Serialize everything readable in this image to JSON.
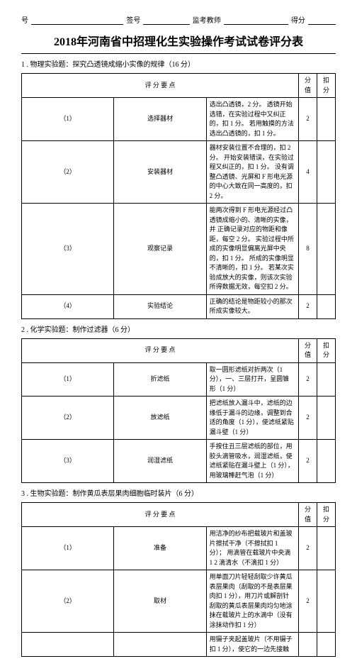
{
  "header_labels": {
    "hao": "号",
    "qianhao": "签号",
    "jiankao": "监考教师",
    "defen": "得分"
  },
  "title": "2018年河南省中招理化生实验操作考试试卷评分表",
  "sections": [
    {
      "heading": "1 . 物理实验题：探究凸透镜成缩小实像的规律（16 分）"
    },
    {
      "heading": "2 . 化学实验题：制作过滤器（6 分）"
    },
    {
      "heading": "3 . 生物实验题：制作黄瓜表层果肉细胞临时装片（6 分）"
    }
  ],
  "cols": {
    "points": "评 分 要 点",
    "score": "分值",
    "deduct": "扣分"
  },
  "t1": [
    {
      "idx": "（1）",
      "name": "选择器材",
      "pts": "选出凸透镜，2 分。\n透镜开始选错，在实验过程中又纠正的，扣 1 分。\n若用触摸的方法选出凸透镜的，扣 1 分。",
      "score": "2"
    },
    {
      "idx": "（2）",
      "name": "安装器材",
      "pts": "器材安装位置不合理的，扣 2 分。\n开始安装错误，在实验过程又纠正的，扣 1 分。\n没有调整凸透镜、光屏和 F 形电光源的中心大致在同一高度的，扣 2 分。",
      "score": "4"
    },
    {
      "idx": "（3）",
      "name": "观察记录",
      "pts": "能两次得到 F 形电光源经过凸透镜成缩小的、清晰的实像，并\n正确记录对应的物距和像距，每空 2 分。\n实验过程中所成的实像明显偏离光屏中央的，扣 1 分。\n所成的实像明显不清晰的，扣 1 分。\n若某次实验成放大的实像，则该次实验所得数据无效，每空扣 2 分。",
      "score": "8"
    },
    {
      "idx": "（4）",
      "name": "实验结论",
      "pts": "正确的结论是物距较小的那次所成实像较大。",
      "score": "2"
    }
  ],
  "t2": [
    {
      "idx": "（1）",
      "name": "折滤纸",
      "pts": "取一圆形滤纸对折两次（1 分），一、三层打开，呈圆锥形（1 分）",
      "score": "2"
    },
    {
      "idx": "（2）",
      "name": "放滤纸",
      "pts": "把滤纸放入漏斗中，滤纸的边缘低于漏斗的边缘，调整到合适的角度（1 分），使滤纸紧贴漏斗壁（1 分）",
      "score": "2"
    },
    {
      "idx": "（3）",
      "name": "润湿滤纸",
      "pts": "手按住丑三层滤纸的部位，用胶头滴管吸水，润湿滤纸，使滤纸紧贴在漏斗壁上（1 分），用玻璃棒赶气泡（1 分）",
      "score": "2"
    }
  ],
  "t3": [
    {
      "idx": "（1）",
      "name": "准备",
      "pts": "用洁净的纱布把载玻片和盖玻片擦拭干净（不擦拭扣 1 分）；\n用滴管在载玻片中央滴 1 2 滴清水（不滴扣 1 分）",
      "score": "2"
    },
    {
      "idx": "（2）",
      "name": "取材",
      "pts": "用单面刀片轻轻刮取少许黄瓜表层果肉（刮取的不是表层果肉扣 1 分），用刀片或解剖针刮取的黄瓜表层果肉均匀地涂抹在载玻片上的水滴中（没有涂抹动作扣 1 分）",
      "score": "2"
    },
    {
      "idx": "",
      "name": "",
      "pts": "用镊子夹起盖玻片（不用镊子扣 1 分），使它的一边先接触",
      "score": ""
    }
  ]
}
